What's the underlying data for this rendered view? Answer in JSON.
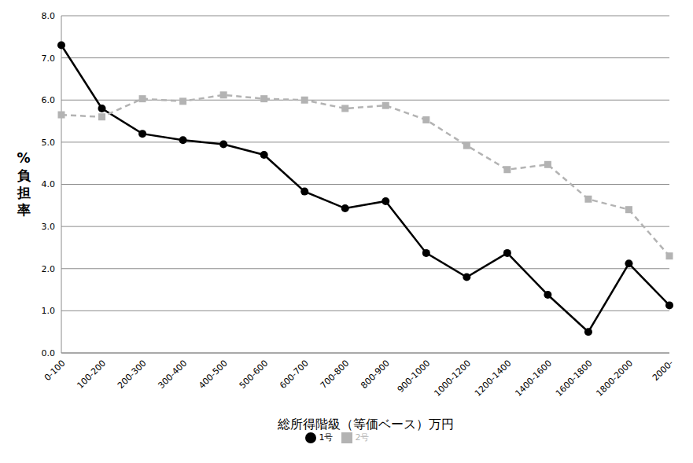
{
  "chart_data": {
    "type": "line",
    "xlabel": "総所得階級（等価ベース）万円",
    "ylabel": "%負担率",
    "categories": [
      "0-100",
      "100-200",
      "200-300",
      "300-400",
      "400-500",
      "500-600",
      "600-700",
      "700-800",
      "800-900",
      "900-1000",
      "1000-1200",
      "1200-1400",
      "1400-1600",
      "1600-1800",
      "1800-2000",
      "2000-"
    ],
    "series": [
      {
        "name": "1号",
        "color": "#000000",
        "marker": "circle",
        "line_style": "solid",
        "values": [
          7.3,
          5.8,
          5.2,
          5.05,
          4.95,
          4.7,
          3.83,
          3.43,
          3.6,
          2.37,
          1.8,
          2.37,
          1.38,
          0.5,
          2.12,
          1.13
        ]
      },
      {
        "name": "2号",
        "color": "#b3b3b3",
        "marker": "square",
        "line_style": "dashed",
        "values": [
          5.65,
          5.6,
          6.03,
          5.97,
          6.12,
          6.03,
          6.0,
          5.8,
          5.87,
          5.53,
          4.92,
          4.35,
          4.47,
          3.65,
          3.4,
          2.3
        ]
      }
    ],
    "ylim": [
      0,
      8
    ],
    "yticks": [
      {
        "value": 0,
        "label": "0.0"
      },
      {
        "value": 1,
        "label": "1.0"
      },
      {
        "value": 2,
        "label": "2.0"
      },
      {
        "value": 3,
        "label": "3.0"
      },
      {
        "value": 4,
        "label": "4.0"
      },
      {
        "value": 5,
        "label": "5.0"
      },
      {
        "value": 6,
        "label": "6.0"
      },
      {
        "value": 7,
        "label": "7.0"
      },
      {
        "value": 8,
        "label": "8.0"
      }
    ],
    "grid": true,
    "legend": "bottom"
  }
}
